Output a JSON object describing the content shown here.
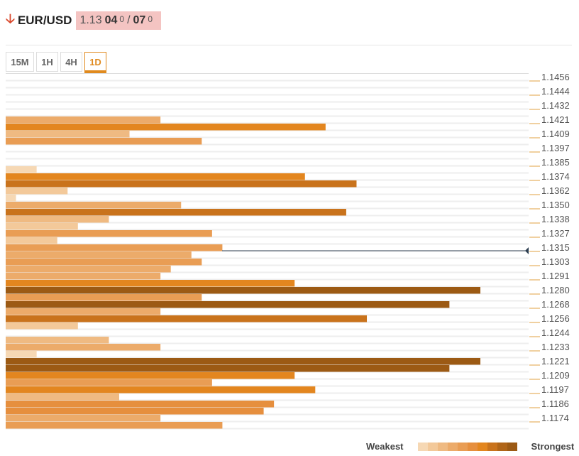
{
  "header": {
    "direction_icon": "arrow-down-icon",
    "pair": "EUR/USD",
    "price_prefix": "1.13",
    "bid_big": "04",
    "bid_sup": "0",
    "separator": "/",
    "ask_big": "07",
    "ask_sup": "0"
  },
  "tabs": [
    {
      "label": "15M",
      "active": false
    },
    {
      "label": "1H",
      "active": false
    },
    {
      "label": "4H",
      "active": false
    },
    {
      "label": "1D",
      "active": true
    }
  ],
  "colors": {
    "accent": "#e08a1e",
    "price_box": "#f4c4c2",
    "down_arrow": "#d9472b",
    "price_line": "#2d3e50"
  },
  "chart_data": {
    "type": "bar",
    "orientation": "horizontal",
    "axis_labels": [
      "1.1456",
      "1.1444",
      "1.1432",
      "1.1421",
      "1.1409",
      "1.1397",
      "1.1385",
      "1.1374",
      "1.1362",
      "1.1350",
      "1.1338",
      "1.1327",
      "1.1315",
      "1.1303",
      "1.1291",
      "1.1280",
      "1.1268",
      "1.1256",
      "1.1244",
      "1.1233",
      "1.1221",
      "1.1209",
      "1.1197",
      "1.1186",
      "1.1174"
    ],
    "strength_levels_top_to_bottom": [
      0,
      0,
      0,
      0,
      0,
      0,
      15,
      31,
      12,
      19,
      0,
      0,
      0,
      3,
      29,
      34,
      6,
      1,
      17,
      33,
      10,
      7,
      20,
      5,
      21,
      18,
      19,
      16,
      15,
      28,
      46,
      19,
      43,
      15,
      35,
      7,
      0,
      10,
      15,
      3,
      46,
      43,
      28,
      20,
      30,
      11,
      26,
      25,
      15,
      21
    ],
    "max_strength": 46,
    "current_price": "1.1315",
    "legend": {
      "weakest": "Weakest",
      "strongest": "Strongest",
      "scale": [
        "#f6d8b4",
        "#f3c99a",
        "#efba82",
        "#ecab6a",
        "#e99d54",
        "#e68f3e",
        "#e3861f",
        "#c9731c",
        "#b06518",
        "#9c5a14"
      ]
    }
  }
}
